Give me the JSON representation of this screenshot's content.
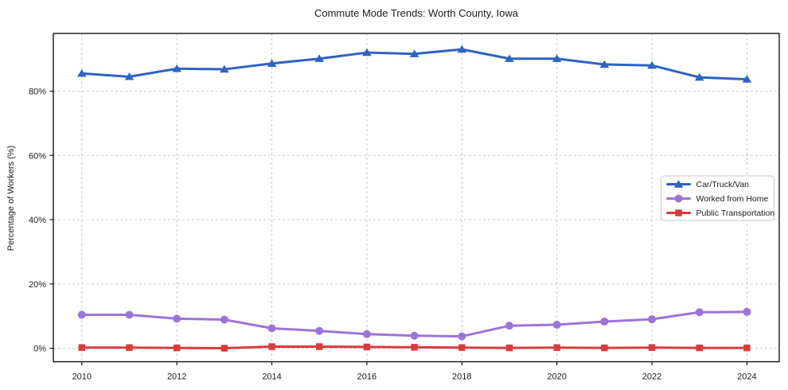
{
  "chart_data": {
    "type": "line",
    "title": "Commute Mode Trends: Worth County, Iowa",
    "xlabel": "",
    "ylabel": "Percentage of Workers (%)",
    "x": [
      2010,
      2011,
      2012,
      2013,
      2014,
      2015,
      2016,
      2017,
      2018,
      2019,
      2020,
      2021,
      2022,
      2023,
      2024
    ],
    "series": [
      {
        "name": "Car/Truck/Van",
        "color": "#2e62c4",
        "marker": "triangle",
        "values": [
          85.5,
          84.5,
          87.0,
          86.8,
          88.6,
          90.1,
          92.0,
          91.6,
          93.0,
          90.1,
          90.1,
          88.3,
          88.0,
          84.3,
          83.7
        ]
      },
      {
        "name": "Worked from Home",
        "color": "#9b74db",
        "marker": "circle",
        "values": [
          10.4,
          10.4,
          9.2,
          8.9,
          6.2,
          5.4,
          4.4,
          3.9,
          3.7,
          7.0,
          7.3,
          8.3,
          9.0,
          11.2,
          11.3
        ]
      },
      {
        "name": "Public Transportation",
        "color": "#da3b3b",
        "marker": "square",
        "values": [
          0.2,
          0.2,
          0.1,
          0.0,
          0.5,
          0.5,
          0.4,
          0.3,
          0.2,
          0.1,
          0.2,
          0.1,
          0.2,
          0.1,
          0.1
        ]
      }
    ],
    "x_ticks": [
      2010,
      2012,
      2014,
      2016,
      2018,
      2020,
      2022,
      2024
    ],
    "x_tick_labels": [
      "2010",
      "2012",
      "2014",
      "2016",
      "2018",
      "2020",
      "2022",
      "2024"
    ],
    "y_ticks": [
      0,
      20,
      40,
      60,
      80
    ],
    "y_tick_labels": [
      "0%",
      "20%",
      "40%",
      "60%",
      "80%"
    ],
    "xlim": [
      2009.4,
      2024.68
    ],
    "ylim": [
      -4.21,
      97.96
    ],
    "grid": true,
    "legend_position": "center right"
  },
  "colors": {
    "background": "#ffffff",
    "grid": "#c8c8c8",
    "axis": "#000000",
    "text": "#1a1a1a",
    "legend_border": "#c8c8c8",
    "legend_background": "#ffffff"
  }
}
